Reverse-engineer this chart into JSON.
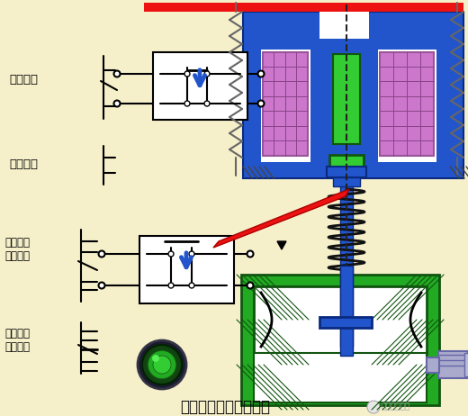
{
  "bg_color": "#f5efca",
  "title": "断电延时型时间继电器",
  "title_fontsize": 12,
  "labels": {
    "instant_nc": "瞬动常闭",
    "instant_no": "瞬动常开",
    "delay_no": "延时断开\n常开触头",
    "delay_nc": "延时闭合\n常闭触头"
  },
  "colors": {
    "blue": "#2255cc",
    "green": "#22aa22",
    "red": "#ee1111",
    "purple": "#cc77cc",
    "light_green": "#33cc33",
    "black": "#000000",
    "white": "#ffffff",
    "gray_box": "#aaaacc",
    "dark_purple": "#442266",
    "dark_green": "#115511",
    "zigzag": "#888888"
  }
}
